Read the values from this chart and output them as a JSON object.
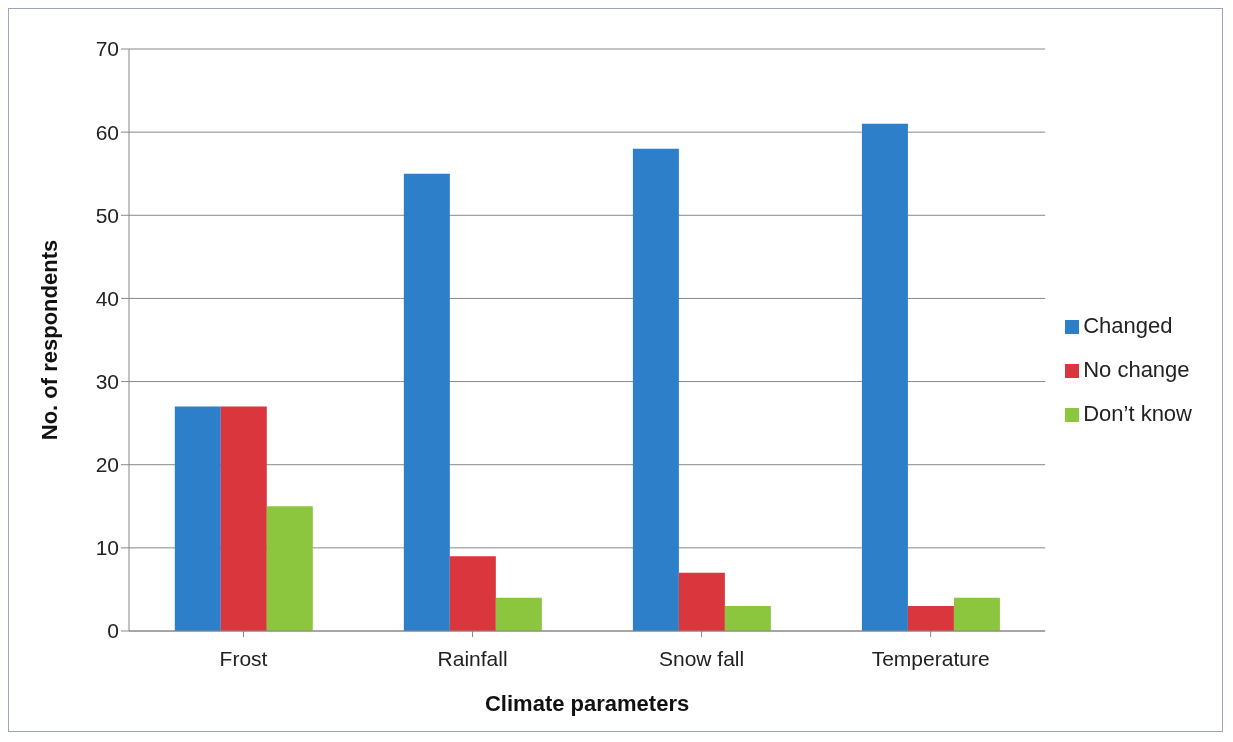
{
  "chart_data": {
    "type": "bar",
    "xlabel": "Climate parameters",
    "ylabel": "No. of respondents",
    "categories": [
      "Frost",
      "Rainfall",
      "Snow fall",
      "Temperature"
    ],
    "series": [
      {
        "name": "Changed",
        "color": "#2e7fc9",
        "values": [
          27,
          55,
          58,
          61
        ]
      },
      {
        "name": "No change",
        "color": "#d9363e",
        "values": [
          27,
          9,
          7,
          3
        ]
      },
      {
        "name": "Don’t know",
        "color": "#8cc63f",
        "values": [
          15,
          4,
          3,
          4
        ]
      }
    ],
    "ylim": [
      0,
      70
    ],
    "yticks": [
      0,
      10,
      20,
      30,
      40,
      50,
      60,
      70
    ],
    "grid": "y",
    "legend": "right"
  }
}
